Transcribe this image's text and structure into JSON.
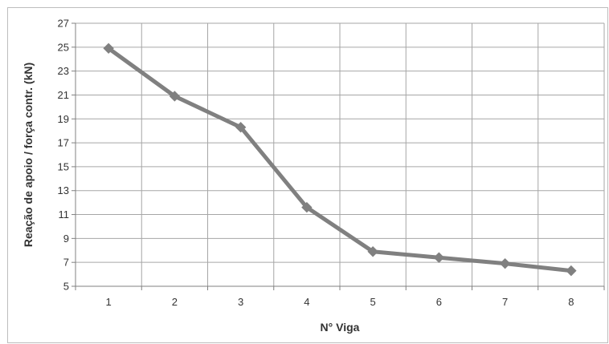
{
  "chart_data": {
    "type": "line",
    "title": "",
    "xlabel": "N° Viga",
    "ylabel": "Reação de apoio / força contr. (kN)",
    "categories": [
      "1",
      "2",
      "3",
      "4",
      "5",
      "6",
      "7",
      "8"
    ],
    "series": [
      {
        "values": [
          24.9,
          20.9,
          18.3,
          11.6,
          7.9,
          7.4,
          6.9,
          6.3
        ],
        "color": "#808080",
        "marker": "diamond"
      }
    ],
    "ylim": [
      5,
      27
    ],
    "yticks": [
      "5",
      "7",
      "9",
      "11",
      "13",
      "15",
      "17",
      "19",
      "21",
      "23",
      "25",
      "27"
    ],
    "grid": true,
    "legend": "none",
    "gridColor": "#a6a6a6",
    "axisColor": "#808080"
  }
}
